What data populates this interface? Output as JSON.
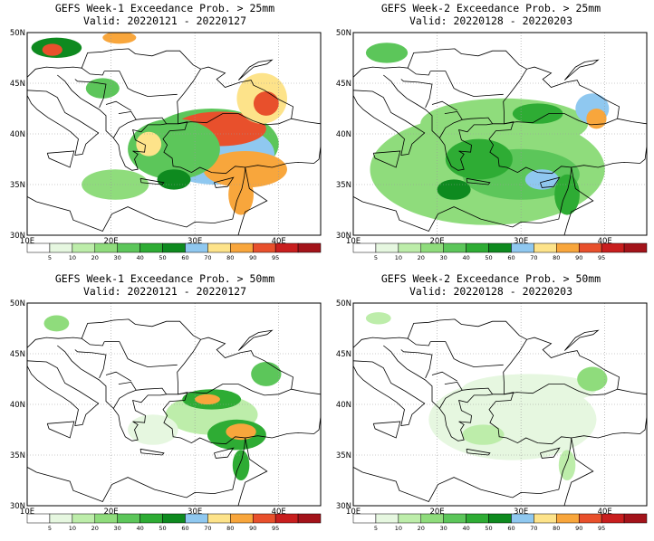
{
  "panels": [
    {
      "id": "w1-25",
      "title": "GEFS Week-1 Exceedance Prob. > 25mm",
      "valid": "Valid: 20220121 - 20220127",
      "blobs": [
        {
          "lon": 32.0,
          "lat": 39.0,
          "rx": 8.0,
          "ry": 3.5,
          "level": 4
        },
        {
          "lon": 32.5,
          "lat": 38.0,
          "rx": 7.0,
          "ry": 3.0,
          "level": 7
        },
        {
          "lon": 33.0,
          "lat": 40.5,
          "rx": 5.5,
          "ry": 1.7,
          "level": 10
        },
        {
          "lon": 36.0,
          "lat": 36.5,
          "rx": 5.0,
          "ry": 1.8,
          "level": 9
        },
        {
          "lon": 38.0,
          "lat": 43.5,
          "rx": 3.0,
          "ry": 2.5,
          "level": 8
        },
        {
          "lon": 38.5,
          "lat": 43.0,
          "rx": 1.5,
          "ry": 1.2,
          "level": 10
        },
        {
          "lon": 27.5,
          "lat": 38.5,
          "rx": 5.5,
          "ry": 3.0,
          "level": 4
        },
        {
          "lon": 24.5,
          "lat": 39.0,
          "rx": 1.5,
          "ry": 1.2,
          "level": 8
        },
        {
          "lon": 20.5,
          "lat": 35.0,
          "rx": 4.0,
          "ry": 1.5,
          "level": 3
        },
        {
          "lon": 13.5,
          "lat": 48.5,
          "rx": 3.0,
          "ry": 1.0,
          "level": 6
        },
        {
          "lon": 13.0,
          "lat": 48.3,
          "rx": 1.2,
          "ry": 0.6,
          "level": 10
        },
        {
          "lon": 19.0,
          "lat": 44.5,
          "rx": 2.0,
          "ry": 1.0,
          "level": 4
        },
        {
          "lon": 21.0,
          "lat": 49.5,
          "rx": 2.0,
          "ry": 0.6,
          "level": 9
        },
        {
          "lon": 27.5,
          "lat": 35.5,
          "rx": 2.0,
          "ry": 1.0,
          "level": 6
        },
        {
          "lon": 35.5,
          "lat": 34.0,
          "rx": 1.5,
          "ry": 2.0,
          "level": 9
        }
      ]
    },
    {
      "id": "w2-25",
      "title": "GEFS Week-2 Exceedance Prob. > 25mm",
      "valid": "Valid: 20220128 - 20220203",
      "blobs": [
        {
          "lon": 26.0,
          "lat": 36.5,
          "rx": 14.0,
          "ry": 5.5,
          "level": 3
        },
        {
          "lon": 28.0,
          "lat": 41.0,
          "rx": 10.0,
          "ry": 2.5,
          "level": 3
        },
        {
          "lon": 30.0,
          "lat": 36.0,
          "rx": 7.0,
          "ry": 2.5,
          "level": 4
        },
        {
          "lon": 25.0,
          "lat": 37.5,
          "rx": 4.0,
          "ry": 2.0,
          "level": 5
        },
        {
          "lon": 32.5,
          "lat": 35.5,
          "rx": 2.0,
          "ry": 1.0,
          "level": 7
        },
        {
          "lon": 38.5,
          "lat": 42.5,
          "rx": 2.0,
          "ry": 1.5,
          "level": 7
        },
        {
          "lon": 39.0,
          "lat": 41.5,
          "rx": 1.2,
          "ry": 1.0,
          "level": 9
        },
        {
          "lon": 22.0,
          "lat": 34.5,
          "rx": 2.0,
          "ry": 1.0,
          "level": 6
        },
        {
          "lon": 14.0,
          "lat": 48.0,
          "rx": 2.5,
          "ry": 1.0,
          "level": 4
        },
        {
          "lon": 35.5,
          "lat": 34.0,
          "rx": 1.5,
          "ry": 2.0,
          "level": 5
        },
        {
          "lon": 32.0,
          "lat": 42.0,
          "rx": 3.0,
          "ry": 1.0,
          "level": 5
        }
      ]
    },
    {
      "id": "w1-50",
      "title": "GEFS Week-1 Exceedance Prob. > 50mm",
      "valid": "Valid: 20220121 - 20220127",
      "blobs": [
        {
          "lon": 32.0,
          "lat": 39.0,
          "rx": 5.5,
          "ry": 2.0,
          "level": 2
        },
        {
          "lon": 32.0,
          "lat": 40.5,
          "rx": 3.5,
          "ry": 1.0,
          "level": 5
        },
        {
          "lon": 31.5,
          "lat": 40.5,
          "rx": 1.5,
          "ry": 0.5,
          "level": 9
        },
        {
          "lon": 35.0,
          "lat": 37.0,
          "rx": 3.5,
          "ry": 1.5,
          "level": 5
        },
        {
          "lon": 35.5,
          "lat": 37.3,
          "rx": 1.8,
          "ry": 0.8,
          "level": 9
        },
        {
          "lon": 38.5,
          "lat": 43.0,
          "rx": 1.8,
          "ry": 1.2,
          "level": 4
        },
        {
          "lon": 25.0,
          "lat": 37.5,
          "rx": 3.0,
          "ry": 1.5,
          "level": 1
        },
        {
          "lon": 13.5,
          "lat": 48.0,
          "rx": 1.5,
          "ry": 0.8,
          "level": 3
        },
        {
          "lon": 35.5,
          "lat": 34.0,
          "rx": 1.0,
          "ry": 1.5,
          "level": 5
        }
      ]
    },
    {
      "id": "w2-50",
      "title": "GEFS Week-2 Exceedance Prob. > 50mm",
      "valid": "Valid: 20220128 - 20220203",
      "blobs": [
        {
          "lon": 29.0,
          "lat": 38.5,
          "rx": 10.0,
          "ry": 4.0,
          "level": 1
        },
        {
          "lon": 31.0,
          "lat": 41.5,
          "rx": 8.0,
          "ry": 1.5,
          "level": 1
        },
        {
          "lon": 38.5,
          "lat": 42.5,
          "rx": 1.8,
          "ry": 1.2,
          "level": 3
        },
        {
          "lon": 25.5,
          "lat": 37.0,
          "rx": 2.5,
          "ry": 1.0,
          "level": 2
        },
        {
          "lon": 35.5,
          "lat": 34.0,
          "rx": 1.0,
          "ry": 1.5,
          "level": 2
        },
        {
          "lon": 13.0,
          "lat": 48.5,
          "rx": 1.5,
          "ry": 0.6,
          "level": 2
        }
      ]
    }
  ],
  "map": {
    "lon_range": [
      10,
      45
    ],
    "lat_range": [
      30,
      50
    ],
    "x_ticks": [
      {
        "lon": 10,
        "label": "10E"
      },
      {
        "lon": 20,
        "label": "20E"
      },
      {
        "lon": 30,
        "label": "30E"
      },
      {
        "lon": 40,
        "label": "40E"
      }
    ],
    "y_ticks": [
      {
        "lat": 30,
        "label": "30N"
      },
      {
        "lat": 35,
        "label": "35N"
      },
      {
        "lat": 40,
        "label": "40N"
      },
      {
        "lat": 45,
        "label": "45N"
      },
      {
        "lat": 50,
        "label": "50N"
      }
    ],
    "grid": "dotted"
  },
  "colorbar": {
    "labels": [
      "5",
      "10",
      "20",
      "30",
      "40",
      "50",
      "60",
      "70",
      "80",
      "90",
      "95"
    ],
    "colors": [
      "#ffffff",
      "#e6f7e0",
      "#bdedaa",
      "#8fdc7c",
      "#5cc65a",
      "#2eac34",
      "#0e8a1f",
      "#8fc8f0",
      "#fde38a",
      "#f8a63c",
      "#e8502c",
      "#c81e1e",
      "#a3131a"
    ]
  }
}
